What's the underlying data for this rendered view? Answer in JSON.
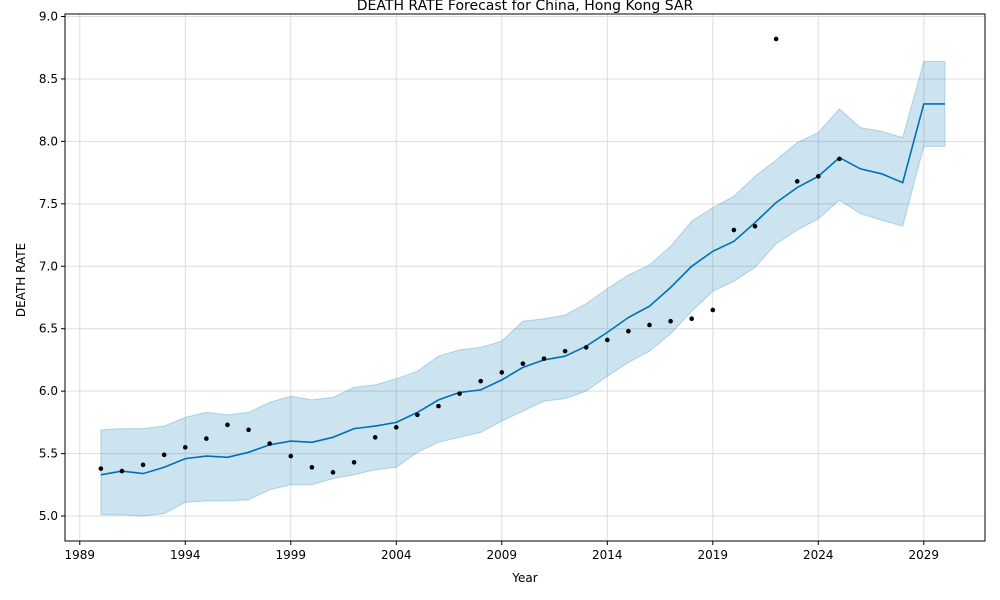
{
  "chart_data": {
    "type": "line",
    "title": "DEATH RATE Forecast for China, Hong Kong SAR",
    "xlabel": "Year",
    "ylabel": "DEATH RATE",
    "xlim": [
      1988.3,
      2031.9
    ],
    "ylim": [
      4.8,
      9.02
    ],
    "x_ticks": [
      1989,
      1994,
      1999,
      2004,
      2009,
      2014,
      2019,
      2024,
      2029
    ],
    "y_ticks": [
      5.0,
      5.5,
      6.0,
      6.5,
      7.0,
      7.5,
      8.0,
      8.5,
      9.0
    ],
    "grid": true,
    "colors": {
      "forecast_line": "#0072b2",
      "interval_fill": "#0072b2",
      "observed_points": "#000000"
    },
    "series": [
      {
        "role": "observed",
        "x": [
          1990,
          1991,
          1992,
          1993,
          1994,
          1995,
          1996,
          1997,
          1998,
          1999,
          2000,
          2001,
          2002,
          2003,
          2004,
          2005,
          2006,
          2007,
          2008,
          2009,
          2010,
          2011,
          2012,
          2013,
          2014,
          2015,
          2016,
          2017,
          2018,
          2019,
          2020,
          2021,
          2022,
          2023,
          2024,
          2025
        ],
        "values": [
          5.38,
          5.36,
          5.41,
          5.49,
          5.55,
          5.62,
          5.73,
          5.69,
          5.58,
          5.48,
          5.39,
          5.35,
          5.43,
          5.63,
          5.71,
          5.81,
          5.88,
          5.98,
          6.08,
          6.15,
          6.22,
          6.26,
          6.32,
          6.35,
          6.41,
          6.48,
          6.53,
          6.56,
          6.58,
          6.65,
          7.29,
          7.32,
          8.82,
          7.68,
          7.72,
          7.86
        ]
      },
      {
        "role": "forecast",
        "x": [
          1990,
          1991,
          1992,
          1993,
          1994,
          1995,
          1996,
          1997,
          1998,
          1999,
          2000,
          2001,
          2002,
          2003,
          2004,
          2005,
          2006,
          2007,
          2008,
          2009,
          2010,
          2011,
          2012,
          2013,
          2014,
          2015,
          2016,
          2017,
          2018,
          2019,
          2020,
          2021,
          2022,
          2023,
          2024,
          2025,
          2026,
          2027,
          2028,
          2029,
          2030
        ],
        "values": [
          5.33,
          5.36,
          5.34,
          5.39,
          5.46,
          5.48,
          5.47,
          5.51,
          5.57,
          5.6,
          5.59,
          5.63,
          5.7,
          5.72,
          5.75,
          5.83,
          5.93,
          5.99,
          6.01,
          6.09,
          6.19,
          6.25,
          6.28,
          6.36,
          6.47,
          6.59,
          6.68,
          6.83,
          7.0,
          7.12,
          7.2,
          7.35,
          7.51,
          7.63,
          7.72,
          7.87,
          7.78,
          7.74,
          7.67,
          8.3,
          8.3
        ],
        "lower": [
          5.01,
          5.01,
          5.0,
          5.02,
          5.11,
          5.12,
          5.12,
          5.13,
          5.21,
          5.25,
          5.25,
          5.3,
          5.33,
          5.37,
          5.39,
          5.51,
          5.59,
          5.63,
          5.67,
          5.76,
          5.84,
          5.92,
          5.94,
          6.0,
          6.12,
          6.23,
          6.32,
          6.46,
          6.64,
          6.8,
          6.88,
          6.99,
          7.18,
          7.29,
          7.38,
          7.53,
          7.42,
          7.37,
          7.32,
          7.96,
          7.96
        ],
        "upper": [
          5.69,
          5.7,
          5.7,
          5.72,
          5.79,
          5.83,
          5.81,
          5.83,
          5.91,
          5.96,
          5.93,
          5.95,
          6.03,
          6.05,
          6.1,
          6.16,
          6.28,
          6.33,
          6.35,
          6.4,
          6.56,
          6.58,
          6.61,
          6.7,
          6.82,
          6.93,
          7.01,
          7.16,
          7.36,
          7.47,
          7.56,
          7.72,
          7.85,
          7.99,
          8.07,
          8.26,
          8.11,
          8.08,
          8.03,
          8.64,
          8.64
        ]
      }
    ]
  }
}
